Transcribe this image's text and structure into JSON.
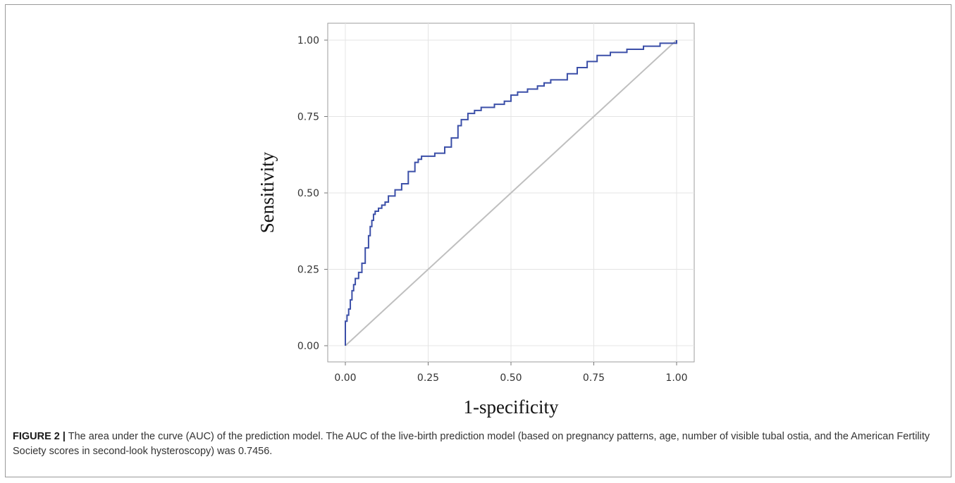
{
  "caption": {
    "label": "FIGURE 2 |",
    "text": "The area under the curve (AUC) of the prediction model. The AUC of the live-birth prediction model (based on pregnancy patterns, age, number of visible tubal ostia, and the American Fertility Society scores in second-look hysteroscopy) was 0.7456."
  },
  "chart_data": {
    "type": "line",
    "title": "",
    "xlabel": "1-specificity",
    "ylabel": "Sensitivity",
    "xlim": [
      0,
      1
    ],
    "ylim": [
      0,
      1
    ],
    "x_ticks": [
      "0.00",
      "0.25",
      "0.50",
      "0.75",
      "1.00"
    ],
    "y_ticks": [
      "0.00",
      "0.25",
      "0.50",
      "0.75",
      "1.00"
    ],
    "grid": true,
    "legend": "none",
    "series": [
      {
        "color": "#3b4fa8",
        "step": true,
        "x": [
          0,
          0,
          0.005,
          0.01,
          0.015,
          0.02,
          0.025,
          0.03,
          0.04,
          0.05,
          0.06,
          0.07,
          0.075,
          0.08,
          0.085,
          0.09,
          0.1,
          0.11,
          0.12,
          0.13,
          0.15,
          0.17,
          0.19,
          0.21,
          0.22,
          0.23,
          0.25,
          0.27,
          0.3,
          0.32,
          0.34,
          0.35,
          0.37,
          0.39,
          0.41,
          0.45,
          0.48,
          0.5,
          0.52,
          0.55,
          0.58,
          0.6,
          0.62,
          0.65,
          0.67,
          0.7,
          0.73,
          0.76,
          0.8,
          0.85,
          0.9,
          0.95,
          1.0
        ],
        "y": [
          0,
          0.08,
          0.1,
          0.12,
          0.15,
          0.18,
          0.2,
          0.22,
          0.24,
          0.27,
          0.32,
          0.36,
          0.39,
          0.41,
          0.43,
          0.44,
          0.45,
          0.46,
          0.47,
          0.49,
          0.51,
          0.53,
          0.57,
          0.6,
          0.61,
          0.62,
          0.62,
          0.63,
          0.65,
          0.68,
          0.72,
          0.74,
          0.76,
          0.77,
          0.78,
          0.79,
          0.8,
          0.82,
          0.83,
          0.84,
          0.85,
          0.86,
          0.87,
          0.87,
          0.89,
          0.91,
          0.93,
          0.95,
          0.96,
          0.97,
          0.98,
          0.99,
          1.0
        ]
      },
      {
        "color": "#bfbfbf",
        "x": [
          0,
          1
        ],
        "y": [
          0,
          1
        ]
      }
    ]
  }
}
